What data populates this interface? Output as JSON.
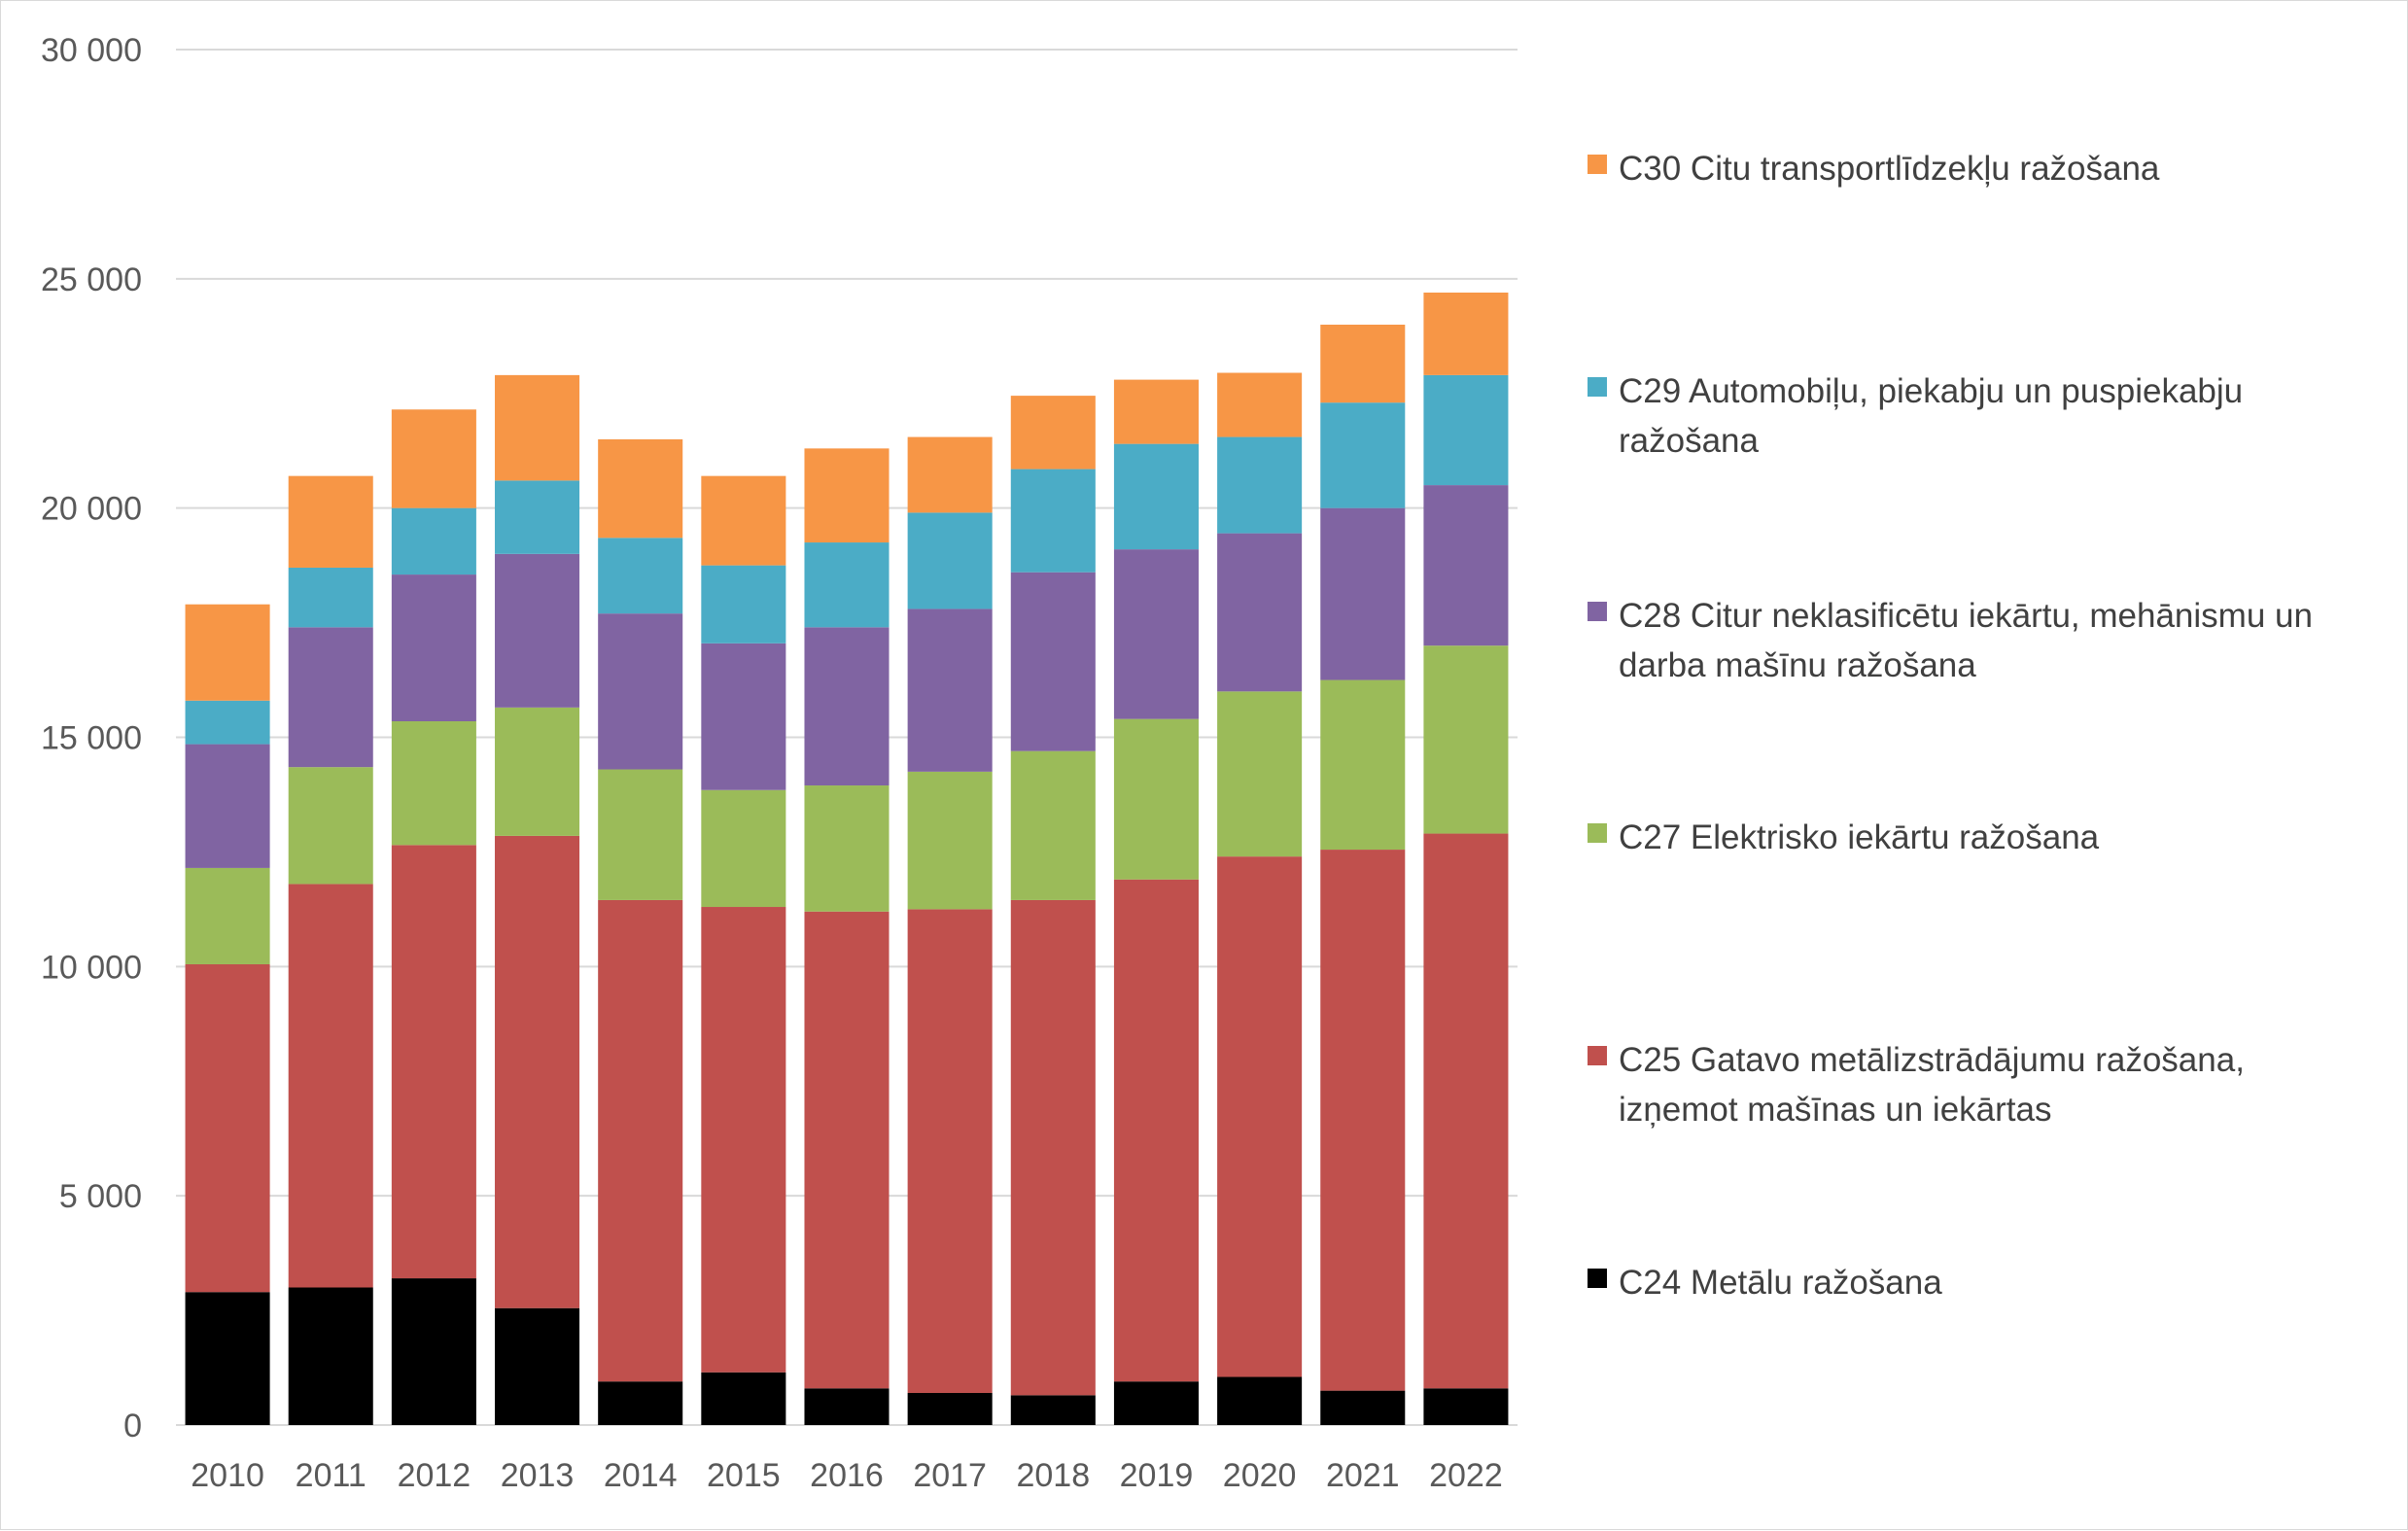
{
  "chart_data": {
    "type": "bar",
    "stacked": true,
    "title": "",
    "xlabel": "",
    "ylabel": "",
    "ylim": [
      0,
      30000
    ],
    "yticks": [
      0,
      5000,
      10000,
      15000,
      20000,
      25000,
      30000
    ],
    "ytick_labels": [
      "0",
      "5 000",
      "10 000",
      "15 000",
      "20 000",
      "25 000",
      "30 000"
    ],
    "grid": "horizontal",
    "legend_position": "right",
    "categories": [
      "2010",
      "2011",
      "2012",
      "2013",
      "2014",
      "2015",
      "2016",
      "2017",
      "2018",
      "2019",
      "2020",
      "2021",
      "2022"
    ],
    "series": [
      {
        "name": "C24 Metālu ražošana",
        "color": "#000000",
        "values": [
          2900,
          3000,
          3200,
          2550,
          950,
          1150,
          800,
          700,
          650,
          950,
          1050,
          750,
          800
        ]
      },
      {
        "name": "C25 Gatavo metālizstrādājumu ražošana, izņemot mašīnas un iekārtas",
        "color": "#c0504d",
        "values": [
          7150,
          8800,
          9450,
          10300,
          10500,
          10150,
          10400,
          10550,
          10800,
          10950,
          11350,
          11800,
          12100
        ]
      },
      {
        "name": "C27 Elektrisko iekārtu ražošana",
        "color": "#9bbb59",
        "values": [
          2100,
          2550,
          2700,
          2800,
          2850,
          2550,
          2750,
          3000,
          3250,
          3500,
          3600,
          3700,
          4100
        ]
      },
      {
        "name": "C28 Citur neklasificētu iekārtu, mehānismu un darba mašīnu ražošana",
        "color": "#8064a2",
        "values": [
          2700,
          3050,
          3200,
          3350,
          3400,
          3200,
          3450,
          3550,
          3900,
          3700,
          3450,
          3750,
          3500
        ]
      },
      {
        "name": "C29 Automobiļu, piekabju un puspiekabju ražošana",
        "color": "#4bacc6",
        "values": [
          950,
          1300,
          1450,
          1600,
          1650,
          1700,
          1850,
          2100,
          2250,
          2300,
          2100,
          2300,
          2400
        ]
      },
      {
        "name": "C30 Citu transportlīdzekļu ražošana",
        "color": "#f79646",
        "values": [
          2100,
          2000,
          2150,
          2300,
          2150,
          1950,
          2050,
          1650,
          1600,
          1400,
          1400,
          1700,
          1800
        ]
      }
    ],
    "legend_order": [
      "C30 Citu transportlīdzekļu ražošana",
      "C29 Automobiļu, piekabju un puspiekabju ražošana",
      "C28 Citur neklasificētu iekārtu, mehānismu un darba mašīnu ražošana",
      "C27 Elektrisko iekārtu ražošana",
      "C25 Gatavo metālizstrādājumu ražošana, izņemot mašīnas un iekārtas",
      "C24 Metālu ražošana"
    ],
    "legend_lines": [
      [
        "C30 Citu transportlīdzekļu ražošana"
      ],
      [
        "C29 Automobiļu, piekabju un puspiekabju",
        "ražošana"
      ],
      [
        "C28 Citur neklasificētu iekārtu, mehānismu un",
        "darba mašīnu ražošana"
      ],
      [
        "C27 Elektrisko iekārtu ražošana"
      ],
      [
        "C25 Gatavo metālizstrādājumu ražošana,",
        "izņemot mašīnas un iekārtas"
      ],
      [
        "C24 Metālu ražošana"
      ]
    ],
    "gridline_color": "#d9d9d9",
    "axis_text_color": "#595959"
  }
}
